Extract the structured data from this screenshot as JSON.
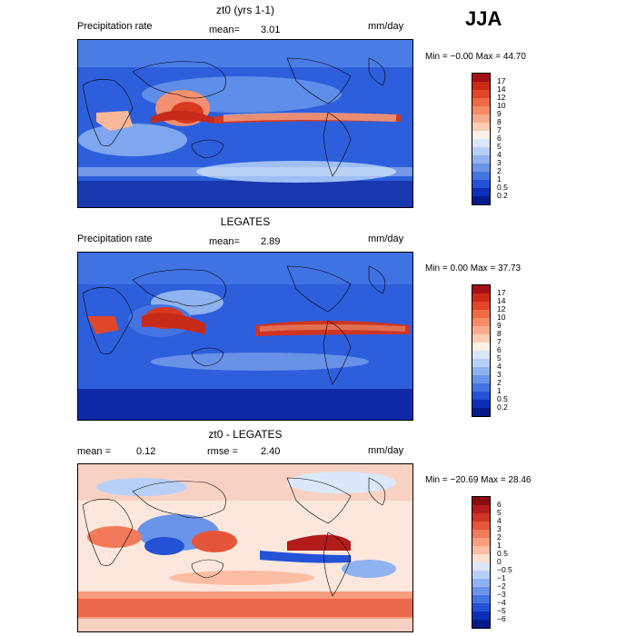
{
  "season": "JJA",
  "panels": [
    {
      "title": "zt0 (yrs 1-1)",
      "left_label": "Precipitation rate",
      "mid_label": "mean=",
      "mid_value": "3.01",
      "units": "mm/day",
      "stats": "Min =  −0.00  Max =  44.70",
      "colorbar_labels": [
        "17",
        "14",
        "12",
        "10",
        "9",
        "8",
        "7",
        "6",
        "5",
        "4",
        "3",
        "2",
        "1",
        "0.5",
        "0.2"
      ],
      "colorbar_colors": [
        "#a50f15",
        "#cb2a18",
        "#e0462a",
        "#ee6a45",
        "#f68b66",
        "#f9ab8c",
        "#fbcdb2",
        "#fdf0e4",
        "#d8e6fa",
        "#b6cff5",
        "#8fb2f0",
        "#6a94ea",
        "#4474e2",
        "#2352d6",
        "#0c2fb8",
        "#061a8c"
      ],
      "mean_note": ""
    },
    {
      "title": "LEGATES",
      "left_label": "Precipitation rate",
      "mid_label": "mean=",
      "mid_value": "2.89",
      "units": "mm/day",
      "stats": "Min =   0.00  Max =  37.73",
      "colorbar_labels": [
        "17",
        "14",
        "12",
        "10",
        "9",
        "8",
        "7",
        "6",
        "5",
        "4",
        "3",
        "2",
        "1",
        "0.5",
        "0.2"
      ],
      "colorbar_colors": [
        "#a50f15",
        "#cb2a18",
        "#e0462a",
        "#ee6a45",
        "#f68b66",
        "#f9ab8c",
        "#fbcdb2",
        "#fdf0e4",
        "#d8e6fa",
        "#b6cff5",
        "#8fb2f0",
        "#6a94ea",
        "#4474e2",
        "#2352d6",
        "#0c2fb8",
        "#061a8c"
      ]
    },
    {
      "title": "zt0 - LEGATES",
      "left_label": "mean =",
      "left_value": "0.12",
      "mid_label": "rmse =",
      "mid_value": "2.40",
      "units": "mm/day",
      "stats": "Min = −20.69  Max =  28.46",
      "colorbar_labels": [
        "6",
        "5",
        "4",
        "3",
        "2",
        "1",
        "0.5",
        "0",
        "−0.5",
        "−1",
        "−2",
        "−3",
        "−4",
        "−5",
        "−6"
      ],
      "colorbar_colors": [
        "#8c0a0f",
        "#b31b1b",
        "#d03525",
        "#e5553a",
        "#f27a5a",
        "#f89c7e",
        "#fbbda3",
        "#fde0cf",
        "#dbe8fb",
        "#b8d0f6",
        "#8fb2f0",
        "#6a94ea",
        "#4474e2",
        "#2352d6",
        "#0c2fb8",
        "#061a8c"
      ]
    }
  ]
}
